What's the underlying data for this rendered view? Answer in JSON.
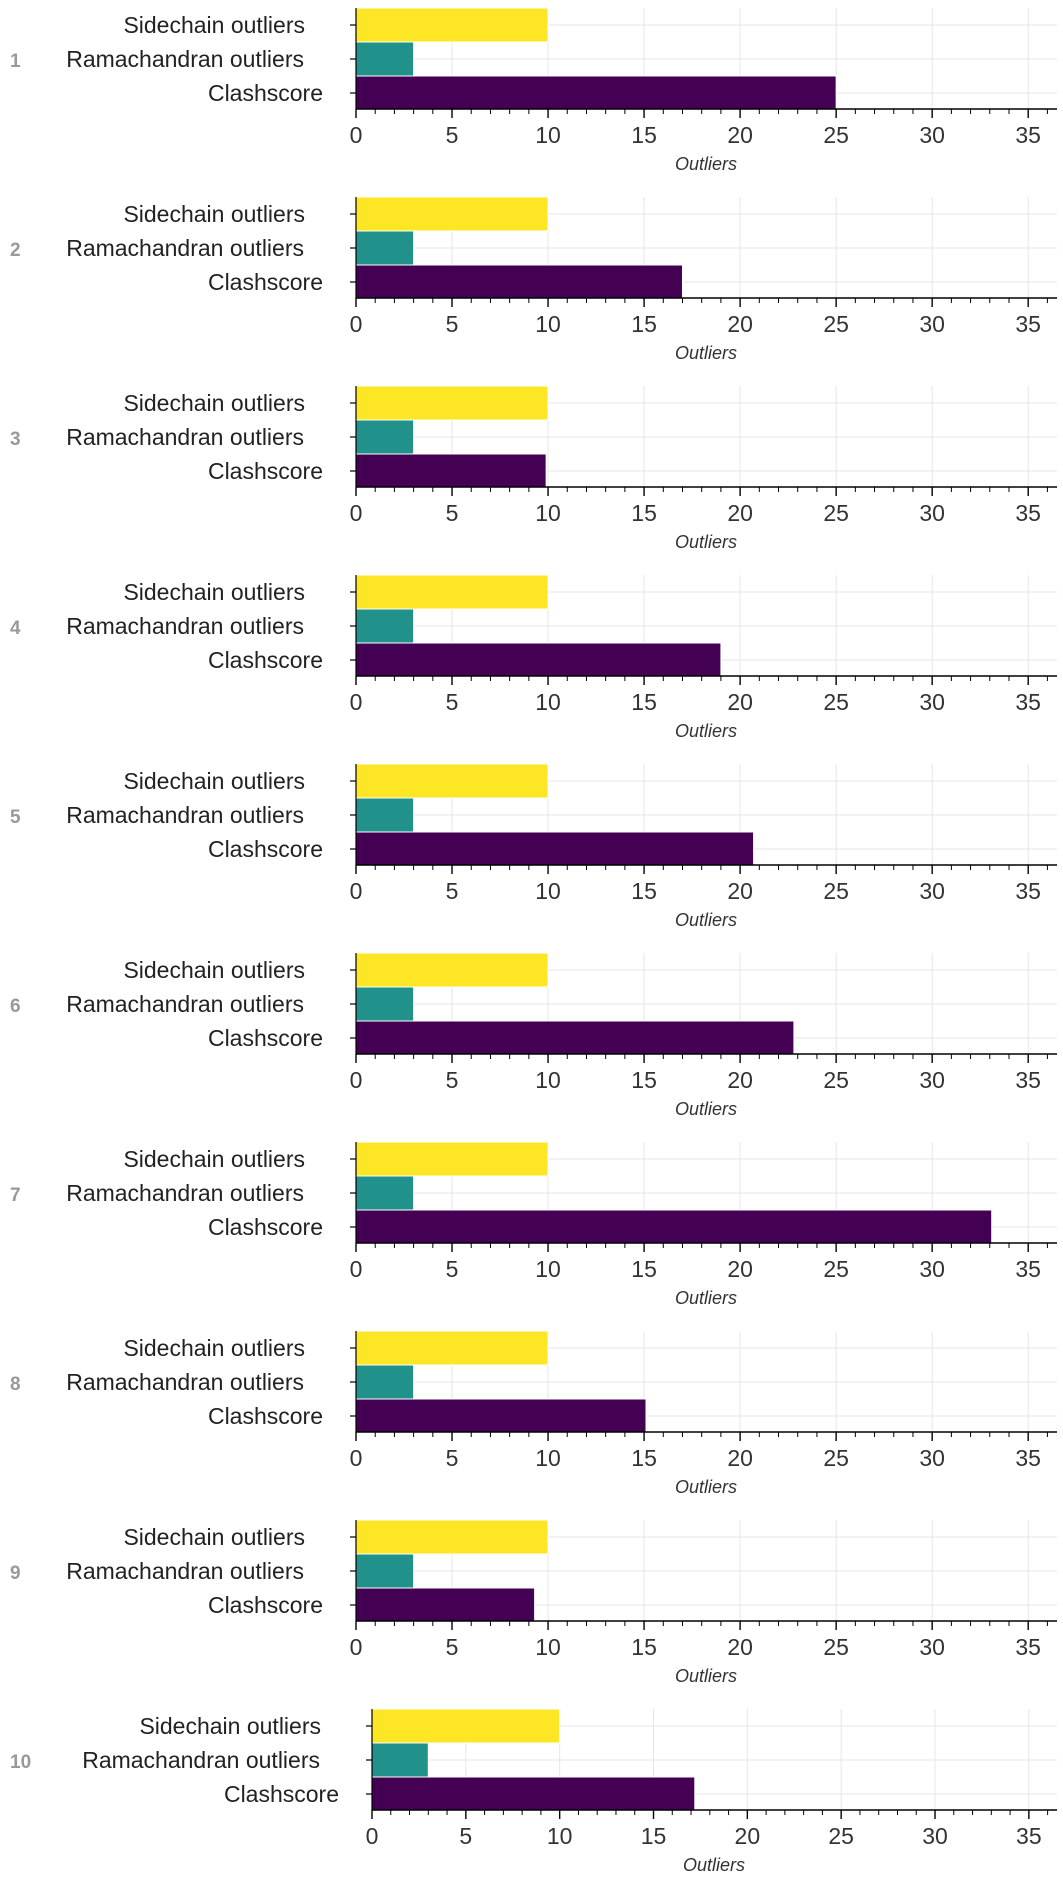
{
  "chart_data": {
    "type": "bar",
    "orientation": "horizontal",
    "xlabel": "Outliers",
    "xlim": [
      0,
      36.5
    ],
    "xticks": [
      "0",
      "5",
      "10",
      "15",
      "20",
      "25",
      "30",
      "35"
    ],
    "categories": [
      "Sidechain outliers",
      "Ramachandran outliers",
      "Clashscore"
    ],
    "colors": {
      "Sidechain outliers": "#fde725",
      "Ramachandran outliers": "#21918c",
      "Clashscore": "#440154"
    },
    "grid": true,
    "panels": [
      {
        "label": "1",
        "values": [
          10,
          3,
          25.0
        ]
      },
      {
        "label": "2",
        "values": [
          10,
          3,
          17.0
        ]
      },
      {
        "label": "3",
        "values": [
          10,
          3,
          9.9
        ]
      },
      {
        "label": "4",
        "values": [
          10,
          3,
          19.0
        ]
      },
      {
        "label": "5",
        "values": [
          10,
          3,
          20.7
        ]
      },
      {
        "label": "6",
        "values": [
          10,
          3,
          22.8
        ]
      },
      {
        "label": "7",
        "values": [
          10,
          3,
          33.1
        ]
      },
      {
        "label": "8",
        "values": [
          10,
          3,
          15.1
        ]
      },
      {
        "label": "9",
        "values": [
          10,
          3,
          9.3
        ]
      },
      {
        "label": "10",
        "values": [
          10,
          3,
          17.2
        ]
      }
    ]
  }
}
